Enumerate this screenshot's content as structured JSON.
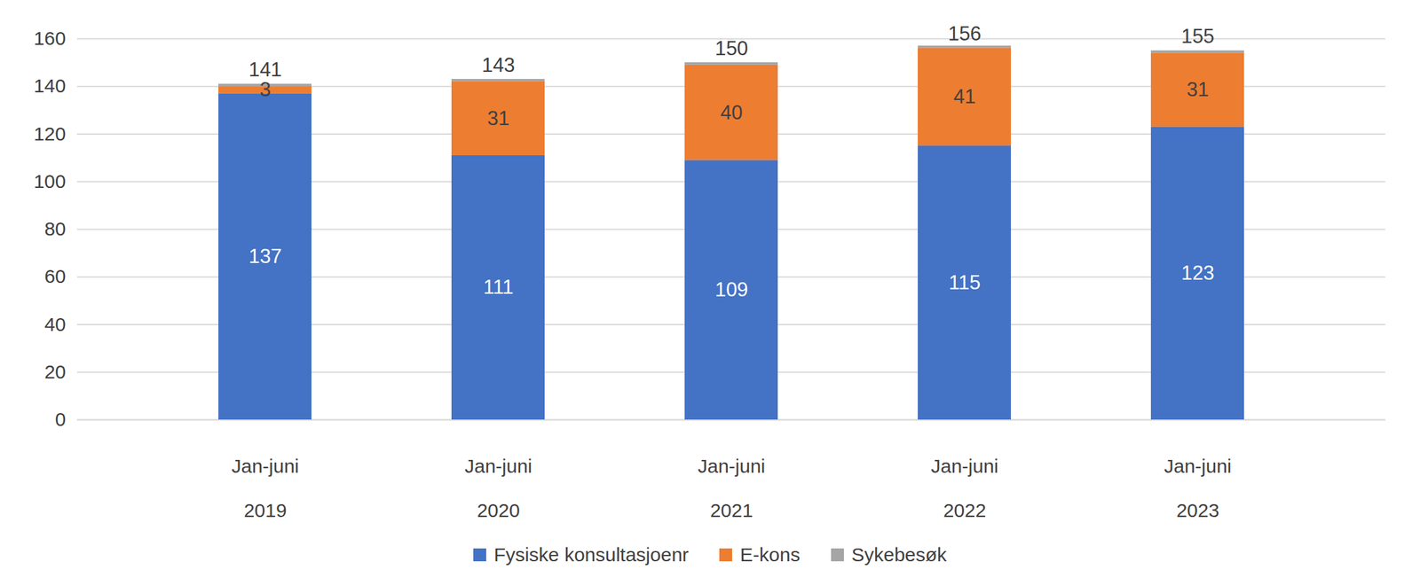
{
  "chart_data": {
    "type": "bar",
    "stacked": true,
    "data_labels": true,
    "grid": true,
    "legend": "bottom",
    "categories": [
      "2019",
      "2020",
      "2021",
      "2022",
      "2023"
    ],
    "period_labels": [
      "Jan-juni",
      "Jan-juni",
      "Jan-juni",
      "Jan-juni",
      "Jan-juni"
    ],
    "series": [
      {
        "name": "Fysiske konsultasjoenr",
        "color": "#4472c4",
        "values": [
          137,
          111,
          109,
          115,
          123
        ]
      },
      {
        "name": "E-kons",
        "color": "#ed7d31",
        "values": [
          3,
          31,
          40,
          41,
          31
        ]
      },
      {
        "name": "Sykebesøk",
        "color": "#a5a5a5",
        "values": [
          1,
          1,
          1,
          1,
          1
        ],
        "data_labels": false
      }
    ],
    "totals": [
      141,
      143,
      150,
      156,
      155
    ],
    "ylim": [
      0,
      160
    ],
    "yticks": [
      0,
      20,
      40,
      60,
      80,
      100,
      120,
      140,
      160
    ]
  }
}
